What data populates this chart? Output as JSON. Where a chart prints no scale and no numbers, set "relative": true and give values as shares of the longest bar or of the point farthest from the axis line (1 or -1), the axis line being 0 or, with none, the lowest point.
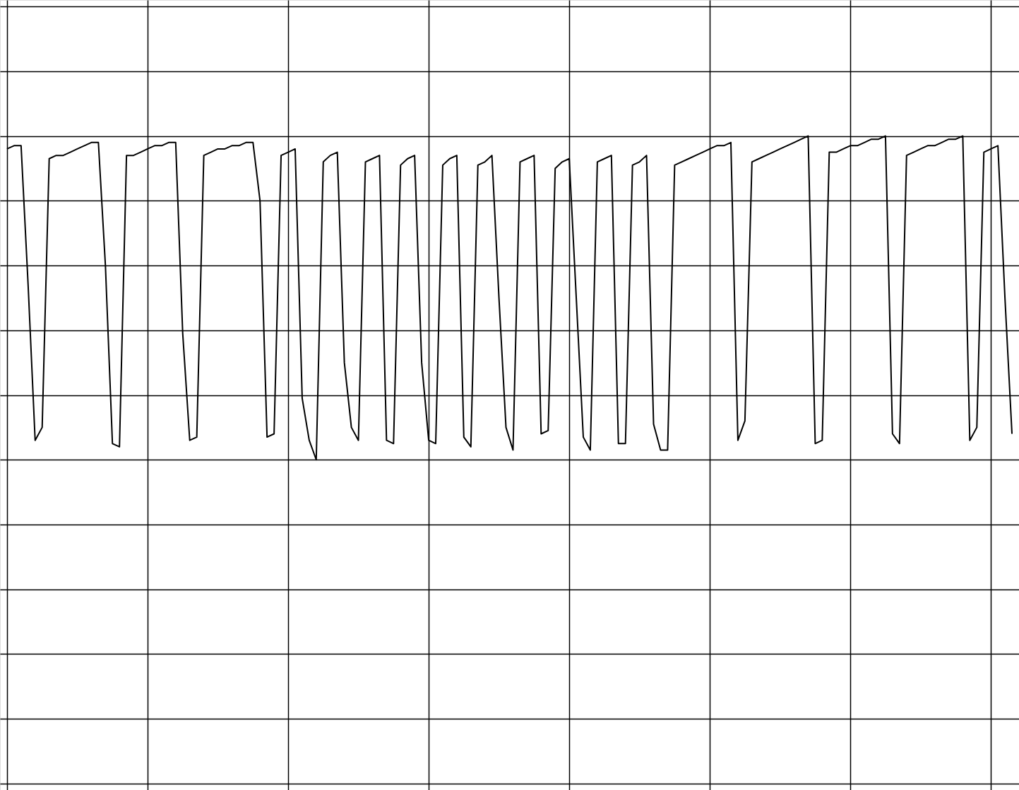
{
  "chart_data": {
    "type": "line",
    "relative": true,
    "grid": true,
    "tick_labels": false,
    "line_style": "solid",
    "categories": [
      null,
      null,
      null,
      null,
      null,
      null,
      null,
      null,
      null,
      null,
      null,
      null,
      null,
      null,
      null,
      null,
      null,
      null,
      null,
      null,
      null,
      null,
      null,
      null,
      null,
      null,
      null,
      null,
      null,
      null,
      null,
      null,
      null,
      null,
      null,
      null,
      null,
      null,
      null,
      null,
      null,
      null,
      null,
      null,
      null,
      null,
      null,
      null,
      null,
      null,
      null,
      null,
      null,
      null,
      null,
      null,
      null,
      null,
      null,
      null,
      null,
      null,
      null,
      null,
      null,
      null,
      null,
      null,
      null,
      null,
      null,
      null,
      null,
      null,
      null,
      null,
      null,
      null,
      null,
      null,
      null,
      null,
      null,
      null,
      null,
      null,
      null,
      null,
      null,
      null,
      null,
      null,
      null,
      null,
      null,
      null,
      null,
      null,
      null,
      null,
      null,
      null,
      null,
      null,
      null,
      null,
      null,
      null,
      null,
      null,
      null,
      null,
      null,
      null,
      null,
      null,
      null,
      null,
      null,
      null,
      null,
      null,
      null,
      null,
      null,
      null,
      null,
      null,
      null,
      null,
      null,
      null,
      null,
      null,
      null,
      null,
      null,
      null,
      null,
      null,
      null,
      null,
      null,
      null
    ],
    "series": [
      {
        "type": "line",
        "marker": "none",
        "color": "#000000",
        "values": [
          0.96,
          0.97,
          0.97,
          0.54,
          0.06,
          0.1,
          0.93,
          0.94,
          0.94,
          0.95,
          0.96,
          0.97,
          0.98,
          0.98,
          0.6,
          0.05,
          0.04,
          0.94,
          0.94,
          0.95,
          0.96,
          0.97,
          0.97,
          0.98,
          0.98,
          0.39,
          0.06,
          0.07,
          0.94,
          0.95,
          0.96,
          0.96,
          0.97,
          0.97,
          0.98,
          0.98,
          0.8,
          0.07,
          0.08,
          0.94,
          0.95,
          0.96,
          0.19,
          0.06,
          0,
          0.92,
          0.94,
          0.95,
          0.3,
          0.1,
          0.06,
          0.92,
          0.93,
          0.94,
          0.06,
          0.05,
          0.91,
          0.93,
          0.94,
          0.3,
          0.06,
          0.05,
          0.91,
          0.93,
          0.94,
          0.07,
          0.04,
          0.91,
          0.92,
          0.94,
          0.5,
          0.1,
          0.03,
          0.92,
          0.93,
          0.94,
          0.08,
          0.09,
          0.9,
          0.92,
          0.93,
          0.5,
          0.07,
          0.03,
          0.92,
          0.93,
          0.94,
          0.05,
          0.05,
          0.91,
          0.92,
          0.94,
          0.11,
          0.03,
          0.03,
          0.91,
          0.92,
          0.93,
          0.94,
          0.95,
          0.96,
          0.97,
          0.97,
          0.98,
          0.06,
          0.12,
          0.92,
          0.93,
          0.94,
          0.95,
          0.96,
          0.97,
          0.98,
          0.99,
          1,
          0.05,
          0.06,
          0.95,
          0.95,
          0.96,
          0.97,
          0.97,
          0.98,
          0.99,
          0.99,
          1,
          0.08,
          0.05,
          0.94,
          0.95,
          0.96,
          0.97,
          0.97,
          0.98,
          0.99,
          0.99,
          1,
          0.06,
          0.1,
          0.95,
          0.96,
          0.97,
          0.5,
          0.08
        ]
      }
    ]
  }
}
